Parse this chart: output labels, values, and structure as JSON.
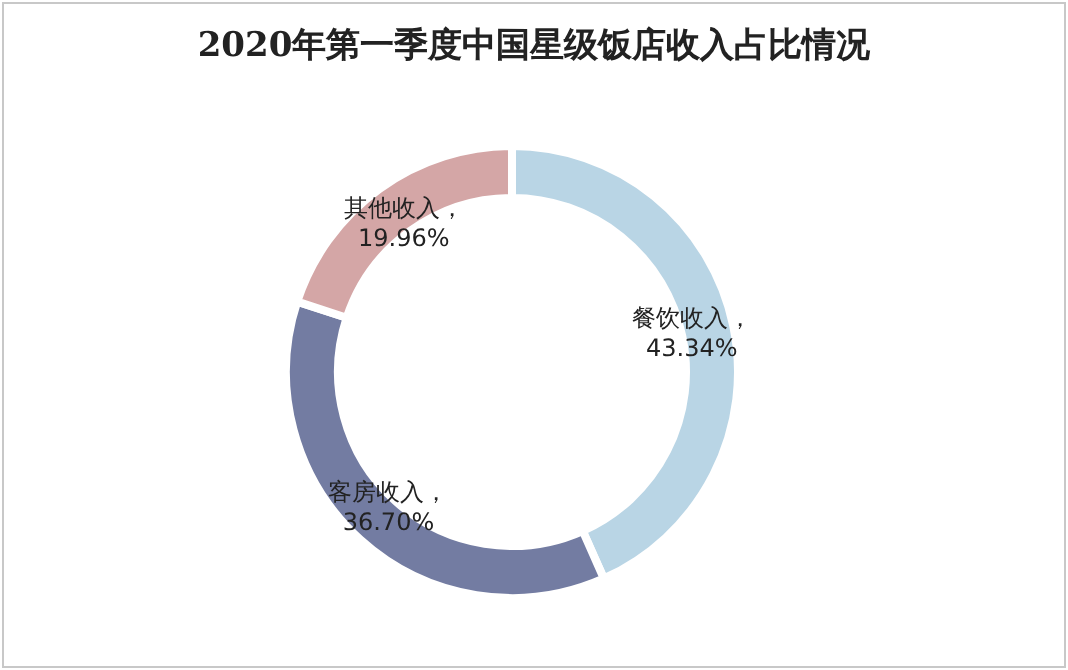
{
  "chart_data": {
    "type": "donut",
    "title": "2020年第一季度中国星级饭店收入占比情况",
    "categories": [
      "餐饮收入",
      "客房收入",
      "其他收入"
    ],
    "values": [
      43.34,
      36.7,
      19.96
    ],
    "colors": [
      "#b9d5e5",
      "#737ca2",
      "#d4a6a6"
    ],
    "value_labels": [
      "，43.34%",
      "，36.70%",
      "，19.96%"
    ],
    "legend": false
  }
}
